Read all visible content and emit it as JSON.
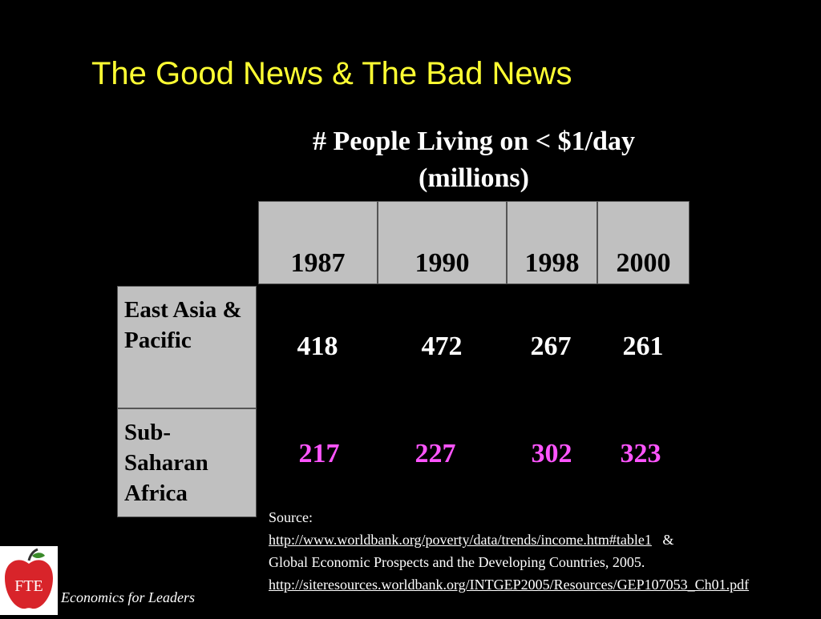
{
  "slide": {
    "title": "The Good News & The Bad News"
  },
  "table": {
    "caption_line1": "# People Living on < $1/day",
    "caption_line2": "(millions)",
    "years": [
      "1987",
      "1990",
      "1998",
      "2000"
    ],
    "rows": [
      {
        "label": "East Asia & Pacific",
        "values": [
          "418",
          "472",
          "267",
          "261"
        ],
        "color": "#ffffff"
      },
      {
        "label": "Sub-Saharan Africa",
        "values": [
          "217",
          "227",
          "302",
          "323"
        ],
        "color": "#ff55ff"
      }
    ]
  },
  "source": {
    "label": "Source:",
    "link1": "http://www.worldbank.org/poverty/data/trends/income.htm#table1",
    "amp": "&",
    "text": "Global Economic Prospects and the Developing Countries, 2005.",
    "link2": "http://siteresources.worldbank.org/INTGEP2005/Resources/GEP107053_Ch01.pdf"
  },
  "footer": {
    "logo_text": "FTE",
    "tagline": "Economics for Leaders"
  }
}
